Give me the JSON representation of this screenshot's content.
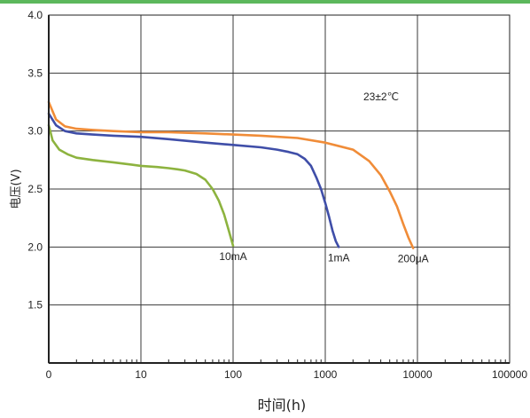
{
  "chart_data": {
    "type": "line",
    "title": "",
    "xlabel": "时间(h)",
    "ylabel": "电压(V)",
    "xscale": "log",
    "xlim": [
      1,
      100000
    ],
    "ylim": [
      1,
      4
    ],
    "xticks": [
      "0",
      "10",
      "100",
      "1000",
      "10000",
      "100000"
    ],
    "yticks": [
      "1.5",
      "2.0",
      "2.5",
      "3.0",
      "3.5",
      "4.0"
    ],
    "grid": true,
    "annotation": "23±2℃",
    "series": [
      {
        "name": "10mA",
        "color": "#8db33f",
        "x": [
          1,
          1.1,
          1.3,
          1.6,
          2,
          3,
          5,
          8,
          10,
          15,
          20,
          25,
          30,
          40,
          50,
          60,
          70,
          80,
          90,
          100
        ],
        "y": [
          3.05,
          2.92,
          2.84,
          2.8,
          2.77,
          2.75,
          2.73,
          2.71,
          2.7,
          2.69,
          2.68,
          2.67,
          2.66,
          2.63,
          2.58,
          2.5,
          2.4,
          2.28,
          2.14,
          2.01
        ]
      },
      {
        "name": "1mA",
        "color": "#3f4ea8",
        "x": [
          1,
          1.2,
          1.5,
          2,
          3,
          5,
          10,
          20,
          50,
          100,
          200,
          300,
          400,
          500,
          600,
          700,
          800,
          900,
          1000,
          1100,
          1200,
          1300,
          1400
        ],
        "y": [
          3.15,
          3.05,
          3.0,
          2.98,
          2.97,
          2.96,
          2.95,
          2.93,
          2.9,
          2.88,
          2.86,
          2.84,
          2.82,
          2.8,
          2.76,
          2.7,
          2.6,
          2.5,
          2.38,
          2.26,
          2.14,
          2.05,
          2.0
        ]
      },
      {
        "name": "200μA",
        "color": "#f08c38",
        "x": [
          1,
          1.2,
          1.5,
          2,
          3,
          5,
          10,
          20,
          50,
          100,
          200,
          500,
          1000,
          2000,
          3000,
          4000,
          5000,
          6000,
          7000,
          8000,
          9000
        ],
        "y": [
          3.25,
          3.1,
          3.04,
          3.02,
          3.01,
          3.0,
          2.99,
          2.99,
          2.98,
          2.97,
          2.96,
          2.94,
          2.9,
          2.84,
          2.74,
          2.62,
          2.48,
          2.35,
          2.2,
          2.08,
          1.99
        ]
      }
    ]
  }
}
